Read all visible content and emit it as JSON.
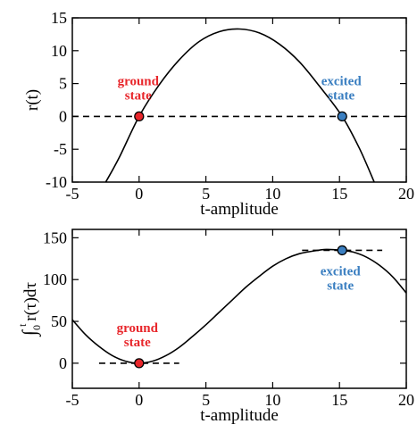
{
  "chart_data": [
    {
      "type": "line",
      "xlabel": "t-amplitude",
      "ylabel": "r(t)",
      "xlim": [
        -5,
        20
      ],
      "ylim": [
        -10,
        15
      ],
      "xticks": [
        "-5",
        "0",
        "5",
        "10",
        "15",
        "20"
      ],
      "yticks": [
        "-10",
        "-5",
        "0",
        "5",
        "10",
        "15"
      ],
      "grid": false,
      "curve": {
        "x": [
          -2.5,
          -1.5,
          0,
          1.5,
          3,
          4.5,
          6,
          7.5,
          9,
          10.5,
          12,
          13.5,
          15.2,
          16.5,
          17.6
        ],
        "y": [
          -10.0,
          -6.3,
          0.0,
          4.8,
          8.6,
          11.4,
          12.9,
          13.3,
          12.7,
          11.0,
          8.3,
          4.6,
          0.0,
          -4.9,
          -10.0
        ]
      },
      "reference_line": {
        "y": 0,
        "style": "dashed"
      },
      "points": [
        {
          "x": 0,
          "y": 0,
          "color": "#e8262b",
          "label": "ground\nstate"
        },
        {
          "x": 15.2,
          "y": 0,
          "color": "#3b7fc1",
          "label": "excited\nstate"
        }
      ]
    },
    {
      "type": "line",
      "xlabel": "t-amplitude",
      "ylabel": "∫₀ᵗ r(τ)dτ",
      "ylabel_parts": {
        "integral": "∫",
        "lower": "0",
        "upper": "t",
        "body": "r(τ)dτ"
      },
      "xlim": [
        -5,
        20
      ],
      "ylim": [
        -30,
        160
      ],
      "xticks": [
        "-5",
        "0",
        "5",
        "10",
        "15",
        "20"
      ],
      "yticks": [
        "0",
        "50",
        "100",
        "150"
      ],
      "grid": false,
      "curve": {
        "x": [
          -5,
          -4,
          -3,
          -2,
          -1,
          0,
          1,
          2,
          3,
          4,
          5,
          6,
          7,
          8,
          9,
          10,
          11,
          12,
          13,
          14,
          15.2,
          16,
          17,
          18,
          19,
          20
        ],
        "y": [
          52,
          34,
          20,
          9,
          2.3,
          0,
          2.4,
          9,
          19,
          32,
          46,
          61,
          76,
          91,
          104,
          116,
          125,
          131,
          134,
          136,
          135,
          133,
          127,
          117,
          103,
          84
        ]
      },
      "segments": [
        {
          "x": [
            -3,
            3
          ],
          "y": 0,
          "style": "dashed"
        },
        {
          "x": [
            12.2,
            18.2
          ],
          "y": 135,
          "style": "dashed"
        }
      ],
      "points": [
        {
          "x": 0,
          "y": 0,
          "color": "#e8262b",
          "label": "ground\nstate"
        },
        {
          "x": 15.2,
          "y": 135,
          "color": "#3b7fc1",
          "label": "excited\nstate"
        }
      ]
    }
  ]
}
